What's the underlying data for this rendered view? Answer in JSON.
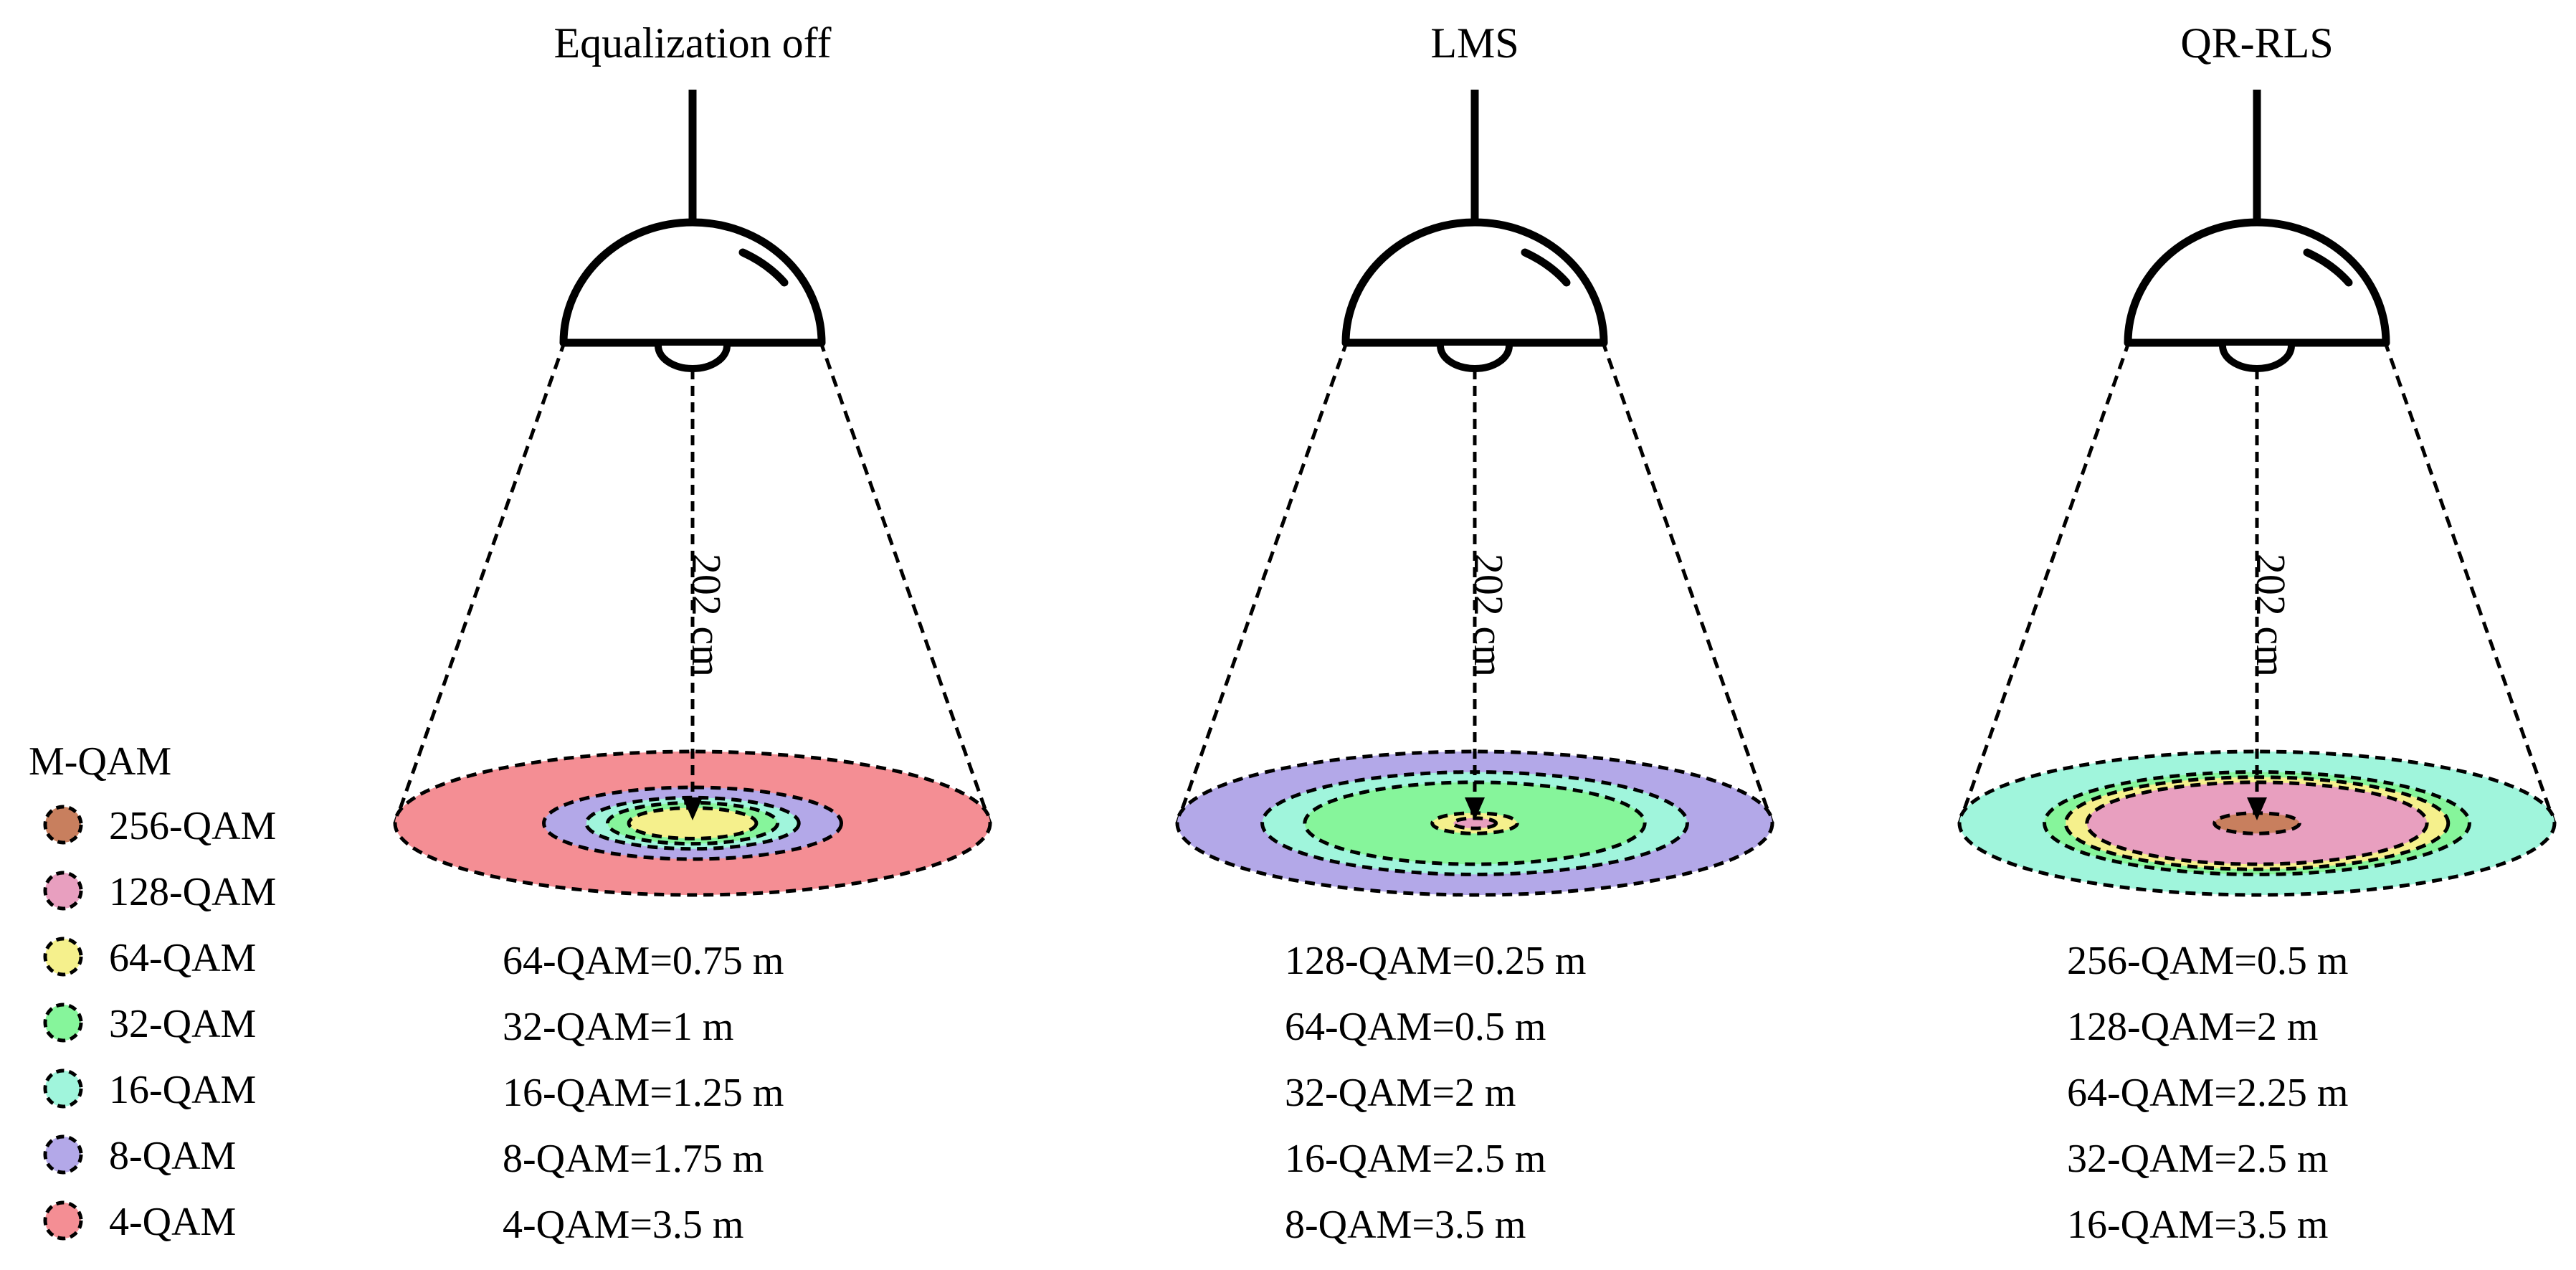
{
  "legend": {
    "title": "M-QAM",
    "items": [
      {
        "label": "256-QAM",
        "color": "#c87f5e"
      },
      {
        "label": "128-QAM",
        "color": "#e89fbf"
      },
      {
        "label": "64-QAM",
        "color": "#f5f08c"
      },
      {
        "label": "32-QAM",
        "color": "#86f59b"
      },
      {
        "label": "16-QAM",
        "color": "#a0f5dc"
      },
      {
        "label": "8-QAM",
        "color": "#b3a8e8"
      },
      {
        "label": "4-QAM",
        "color": "#f48e94"
      }
    ]
  },
  "height_label": "202 cm",
  "panels": [
    {
      "title": "Equalization off",
      "rings": [
        {
          "scheme": "4-QAM",
          "radius_m": 3.5,
          "color": "#f48e94"
        },
        {
          "scheme": "8-QAM",
          "radius_m": 1.75,
          "color": "#b3a8e8"
        },
        {
          "scheme": "16-QAM",
          "radius_m": 1.25,
          "color": "#a0f5dc"
        },
        {
          "scheme": "32-QAM",
          "radius_m": 1.0,
          "color": "#86f59b"
        },
        {
          "scheme": "64-QAM",
          "radius_m": 0.75,
          "color": "#f5f08c"
        }
      ],
      "results": [
        "64-QAM=0.75 m",
        "32-QAM=1 m",
        "16-QAM=1.25 m",
        "8-QAM=1.75 m",
        "4-QAM=3.5 m"
      ]
    },
    {
      "title": "LMS",
      "rings": [
        {
          "scheme": "8-QAM",
          "radius_m": 3.5,
          "color": "#b3a8e8"
        },
        {
          "scheme": "16-QAM",
          "radius_m": 2.5,
          "color": "#a0f5dc"
        },
        {
          "scheme": "32-QAM",
          "radius_m": 2.0,
          "color": "#86f59b"
        },
        {
          "scheme": "64-QAM",
          "radius_m": 0.5,
          "color": "#f5f08c"
        },
        {
          "scheme": "128-QAM",
          "radius_m": 0.25,
          "color": "#e89fbf"
        }
      ],
      "results": [
        "128-QAM=0.25 m",
        "64-QAM=0.5 m",
        "32-QAM=2 m",
        "16-QAM=2.5 m",
        "8-QAM=3.5 m"
      ]
    },
    {
      "title": "QR-RLS",
      "rings": [
        {
          "scheme": "16-QAM",
          "radius_m": 3.5,
          "color": "#a0f5dc"
        },
        {
          "scheme": "32-QAM",
          "radius_m": 2.5,
          "color": "#86f59b"
        },
        {
          "scheme": "64-QAM",
          "radius_m": 2.25,
          "color": "#f5f08c"
        },
        {
          "scheme": "128-QAM",
          "radius_m": 2.0,
          "color": "#e89fbf"
        },
        {
          "scheme": "256-QAM",
          "radius_m": 0.5,
          "color": "#c87f5e"
        }
      ],
      "results": [
        "256-QAM=0.5 m",
        "128-QAM=2 m",
        "64-QAM=2.25 m",
        "32-QAM=2.5 m",
        "16-QAM=3.5 m"
      ]
    }
  ]
}
